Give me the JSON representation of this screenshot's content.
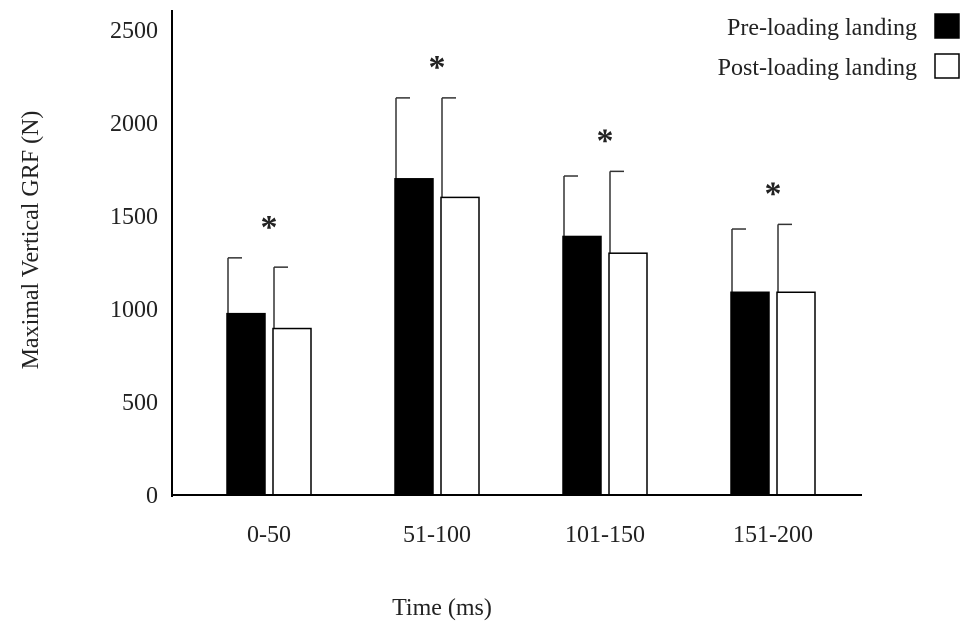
{
  "chart_data": {
    "type": "bar",
    "title": "",
    "xlabel": "Time  (ms)",
    "ylabel": "Maximal  Vertical  GRF  (N)",
    "categories": [
      "0-50",
      "51-100",
      "101-150",
      "151-200"
    ],
    "ylim": [
      0,
      2500
    ],
    "yticks": [
      0,
      500,
      1000,
      1500,
      2000,
      2500
    ],
    "series": [
      {
        "name": "Pre-loading  landing",
        "color": "#000000",
        "values": [
          975,
          1700,
          1390,
          1090
        ],
        "error": [
          300,
          435,
          325,
          340
        ]
      },
      {
        "name": "Post-loading  landing",
        "color": "#ffffff",
        "values": [
          895,
          1600,
          1300,
          1090
        ],
        "error": [
          330,
          535,
          440,
          365
        ]
      }
    ],
    "annotations": [
      "*",
      "*",
      "*",
      "*"
    ],
    "legend": "top-right",
    "grid": false
  }
}
